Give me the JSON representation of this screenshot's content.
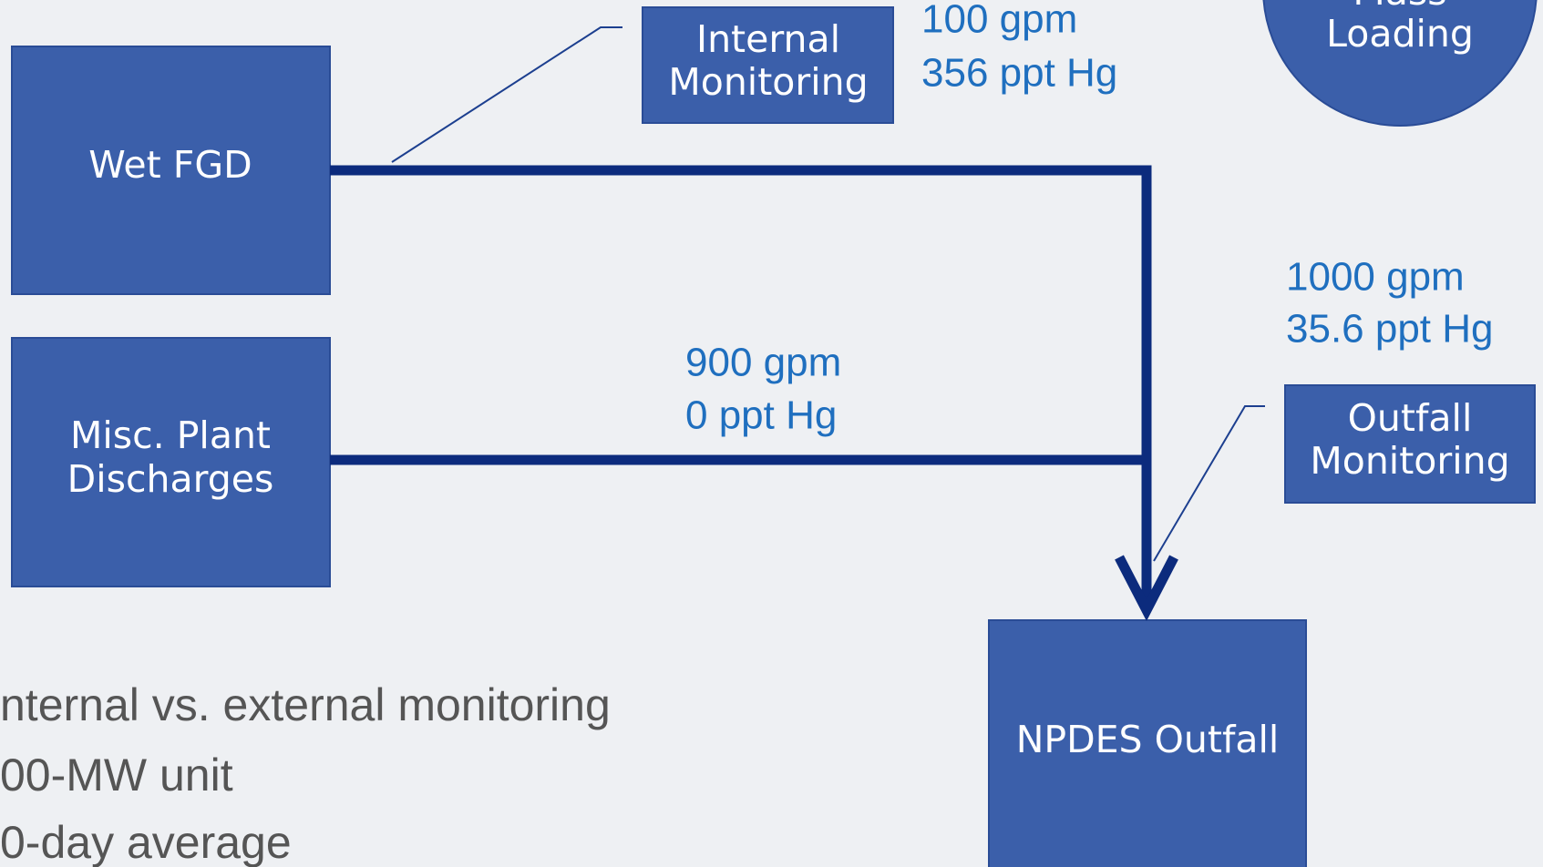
{
  "nodes": [
    {
      "label": [
        "Wet FGD"
      ]
    },
    {
      "label": [
        "Misc. Plant",
        "Discharges"
      ]
    },
    {
      "label": [
        "Internal",
        "Monitoring"
      ]
    },
    {
      "label": [
        "Mass",
        "Loading"
      ]
    },
    {
      "label": [
        "Outfall",
        "Monitoring"
      ]
    },
    {
      "label": [
        "NPDES Outfall"
      ]
    }
  ],
  "flows": [
    {
      "label": [
        "100 gpm",
        "356 ppt Hg"
      ]
    },
    {
      "label": [
        "900 gpm",
        "0 ppt Hg"
      ]
    },
    {
      "label": [
        "1000 gpm",
        "35.6 ppt Hg"
      ]
    }
  ],
  "bullets": [
    "nternal vs. external monitoring",
    "00-MW unit",
    "0-day average"
  ]
}
